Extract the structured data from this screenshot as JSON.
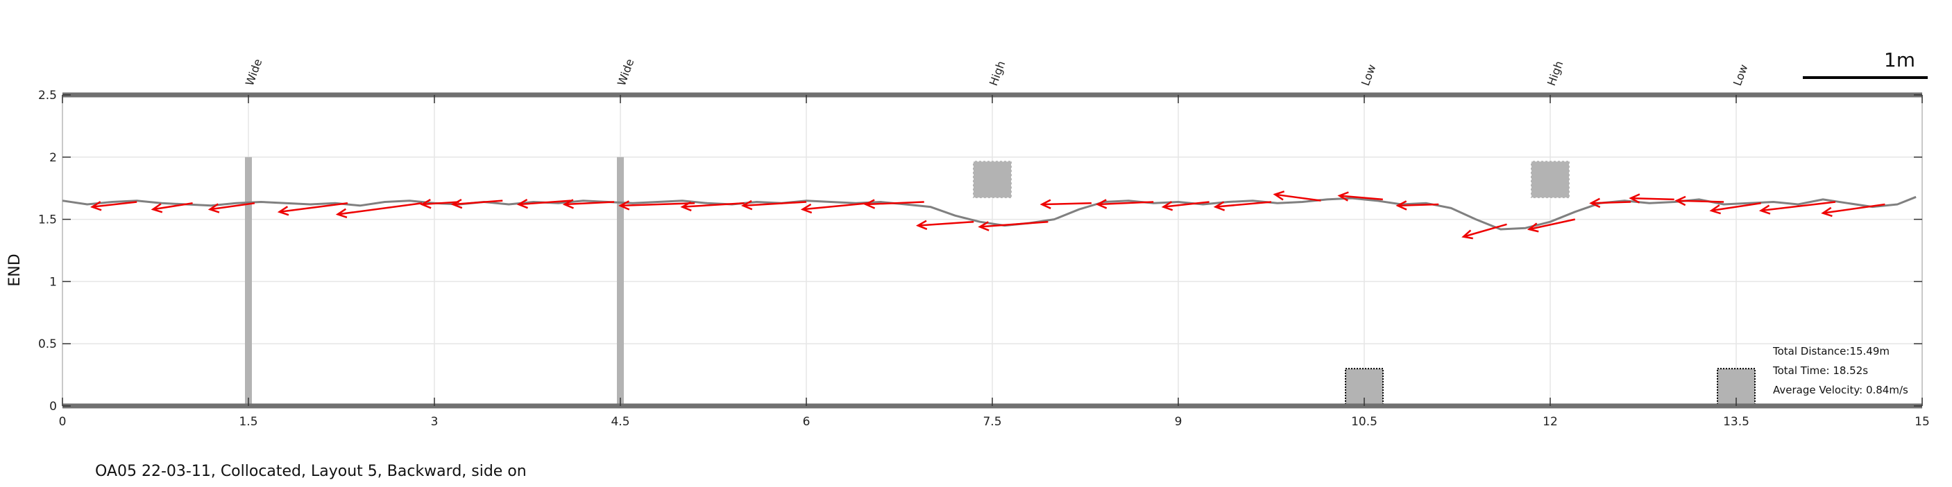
{
  "caption": "OA05 22-03-11, Collocated, Layout 5, Backward, side on",
  "scale_bar": {
    "label": "1m",
    "length_m": 1
  },
  "stats": {
    "distance": "Total Distance:15.49m",
    "time": "Total Time: 18.52s",
    "velocity": "Average Velocity: 0.84m/s"
  },
  "colors": {
    "path": "#808080",
    "arrow": "#ee0000",
    "obstacle": "#b3b3b3",
    "border": "#707070",
    "grid": "#e6e6e6"
  },
  "chart_data": {
    "type": "line",
    "xlim": [
      0,
      15
    ],
    "ylim": [
      0,
      2.5
    ],
    "ylabel": "END",
    "grid": true,
    "x_ticks": [
      "0",
      "1.5",
      "3",
      "4.5",
      "6",
      "7.5",
      "9",
      "10.5",
      "12",
      "13.5",
      "15"
    ],
    "y_ticks": [
      "0",
      "0.5",
      "1",
      "1.5",
      "2",
      "2.5"
    ],
    "obstacles": [
      {
        "label": "Wide",
        "x": 1.5,
        "type": "pole",
        "y": [
          0,
          2
        ]
      },
      {
        "label": "Wide",
        "x": 4.5,
        "type": "pole",
        "y": [
          0,
          2
        ]
      },
      {
        "label": "High",
        "x": 7.5,
        "type": "high",
        "y": [
          1.67,
          1.97
        ]
      },
      {
        "label": "Low",
        "x": 10.5,
        "type": "low",
        "y": [
          0,
          0.3
        ]
      },
      {
        "label": "High",
        "x": 12,
        "type": "high",
        "y": [
          1.67,
          1.97
        ]
      },
      {
        "label": "Low",
        "x": 13.5,
        "type": "low",
        "y": [
          0,
          0.3
        ]
      }
    ],
    "series": [
      {
        "x": [
          0,
          0.2,
          0.4,
          0.6,
          0.8,
          1.0,
          1.2,
          1.4,
          1.6,
          1.8,
          2.0,
          2.2,
          2.4,
          2.6,
          2.8,
          3.0,
          3.2,
          3.4,
          3.6,
          3.8,
          4.0,
          4.2,
          4.4,
          4.6,
          4.8,
          5.0,
          5.2,
          5.4,
          5.6,
          5.8,
          6.0,
          6.2,
          6.4,
          6.6,
          6.8,
          7.0,
          7.2,
          7.4,
          7.6,
          7.8,
          8.0,
          8.2,
          8.4,
          8.6,
          8.8,
          9.0,
          9.2,
          9.4,
          9.6,
          9.8,
          10.0,
          10.2,
          10.4,
          10.6,
          10.8,
          11.0,
          11.2,
          11.4,
          11.6,
          11.8,
          12.0,
          12.2,
          12.4,
          12.6,
          12.8,
          13.0,
          13.2,
          13.4,
          13.6,
          13.8,
          14.0,
          14.2,
          14.4,
          14.6,
          14.8,
          14.95
        ],
        "y": [
          1.65,
          1.62,
          1.64,
          1.65,
          1.63,
          1.62,
          1.61,
          1.63,
          1.64,
          1.63,
          1.62,
          1.63,
          1.61,
          1.64,
          1.65,
          1.63,
          1.62,
          1.64,
          1.62,
          1.64,
          1.63,
          1.65,
          1.64,
          1.63,
          1.64,
          1.65,
          1.63,
          1.62,
          1.64,
          1.63,
          1.65,
          1.64,
          1.63,
          1.64,
          1.62,
          1.6,
          1.53,
          1.48,
          1.45,
          1.47,
          1.5,
          1.58,
          1.64,
          1.65,
          1.63,
          1.64,
          1.62,
          1.64,
          1.65,
          1.63,
          1.64,
          1.66,
          1.67,
          1.65,
          1.62,
          1.63,
          1.59,
          1.5,
          1.42,
          1.43,
          1.48,
          1.56,
          1.63,
          1.65,
          1.63,
          1.64,
          1.66,
          1.62,
          1.63,
          1.64,
          1.62,
          1.66,
          1.63,
          1.6,
          1.62,
          1.68
        ]
      }
    ],
    "arrows": [
      {
        "x": 0.6,
        "y": 1.64,
        "dx": -0.36,
        "dy": -0.04
      },
      {
        "x": 1.05,
        "y": 1.63,
        "dx": -0.32,
        "dy": -0.05
      },
      {
        "x": 1.55,
        "y": 1.63,
        "dx": -0.36,
        "dy": -0.05
      },
      {
        "x": 2.3,
        "y": 1.63,
        "dx": -0.55,
        "dy": -0.07
      },
      {
        "x": 2.9,
        "y": 1.63,
        "dx": -0.68,
        "dy": -0.09
      },
      {
        "x": 3.2,
        "y": 1.64,
        "dx": -0.3,
        "dy": -0.02
      },
      {
        "x": 3.55,
        "y": 1.65,
        "dx": -0.4,
        "dy": -0.03
      },
      {
        "x": 4.1,
        "y": 1.65,
        "dx": -0.42,
        "dy": -0.03
      },
      {
        "x": 4.45,
        "y": 1.64,
        "dx": -0.4,
        "dy": -0.02
      },
      {
        "x": 5.1,
        "y": 1.63,
        "dx": -0.6,
        "dy": -0.02
      },
      {
        "x": 5.5,
        "y": 1.63,
        "dx": -0.5,
        "dy": -0.03
      },
      {
        "x": 6.0,
        "y": 1.64,
        "dx": -0.51,
        "dy": -0.03
      },
      {
        "x": 6.5,
        "y": 1.63,
        "dx": -0.53,
        "dy": -0.05
      },
      {
        "x": 6.95,
        "y": 1.64,
        "dx": -0.47,
        "dy": -0.02
      },
      {
        "x": 7.35,
        "y": 1.48,
        "dx": -0.45,
        "dy": -0.03
      },
      {
        "x": 7.95,
        "y": 1.48,
        "dx": -0.55,
        "dy": -0.04
      },
      {
        "x": 8.3,
        "y": 1.63,
        "dx": -0.4,
        "dy": -0.01
      },
      {
        "x": 8.8,
        "y": 1.64,
        "dx": -0.45,
        "dy": -0.02
      },
      {
        "x": 9.25,
        "y": 1.64,
        "dx": -0.37,
        "dy": -0.04
      },
      {
        "x": 9.75,
        "y": 1.64,
        "dx": -0.45,
        "dy": -0.04
      },
      {
        "x": 10.15,
        "y": 1.65,
        "dx": -0.37,
        "dy": 0.05
      },
      {
        "x": 10.65,
        "y": 1.66,
        "dx": -0.35,
        "dy": 0.03
      },
      {
        "x": 11.1,
        "y": 1.62,
        "dx": -0.33,
        "dy": -0.01
      },
      {
        "x": 11.65,
        "y": 1.46,
        "dx": -0.35,
        "dy": -0.1
      },
      {
        "x": 12.2,
        "y": 1.5,
        "dx": -0.37,
        "dy": -0.08
      },
      {
        "x": 12.65,
        "y": 1.64,
        "dx": -0.32,
        "dy": -0.01
      },
      {
        "x": 13.0,
        "y": 1.66,
        "dx": -0.35,
        "dy": 0.01
      },
      {
        "x": 13.4,
        "y": 1.64,
        "dx": -0.38,
        "dy": 0.01
      },
      {
        "x": 13.7,
        "y": 1.63,
        "dx": -0.4,
        "dy": -0.06
      },
      {
        "x": 14.3,
        "y": 1.64,
        "dx": -0.6,
        "dy": -0.07
      },
      {
        "x": 14.7,
        "y": 1.62,
        "dx": -0.5,
        "dy": -0.07
      }
    ]
  }
}
